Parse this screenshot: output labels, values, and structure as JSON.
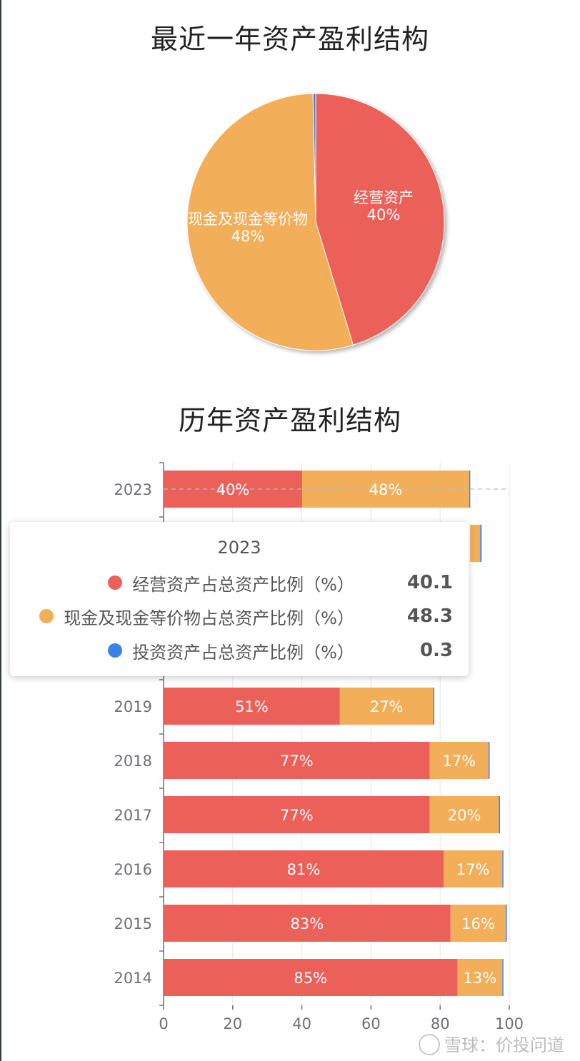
{
  "pie": {
    "title": "最近一年资产盈利结构",
    "chart_data": {
      "type": "pie",
      "slices": [
        {
          "label": "经营资产",
          "value": 40,
          "color": "#ec605a"
        },
        {
          "label": "现金及现金等价物",
          "value": 48,
          "color": "#f2ae58"
        },
        {
          "label": "投资资产",
          "value": 0.3,
          "color": "#3b82e8"
        }
      ],
      "display_labels": {
        "operating": "40%",
        "cash": "48%"
      }
    }
  },
  "bar": {
    "title": "历年资产盈利结构",
    "chart_data": {
      "type": "bar",
      "orientation": "horizontal",
      "stacked": true,
      "categories": [
        "2023",
        "2019",
        "2018",
        "2017",
        "2016",
        "2015",
        "2014"
      ],
      "series": [
        {
          "name": "经营资产占总资产比例（%）",
          "color": "#ec605a",
          "values": [
            40.1,
            51,
            77,
            77,
            81,
            83,
            85
          ],
          "labels": [
            "40%",
            "51%",
            "77%",
            "77%",
            "81%",
            "83%",
            "85%"
          ]
        },
        {
          "name": "现金及现金等价物占总资产比例（%）",
          "color": "#f2ae58",
          "values": [
            48.3,
            27,
            17,
            20,
            17,
            16,
            13
          ],
          "labels": [
            "48%",
            "27%",
            "17%",
            "20%",
            "17%",
            "16%",
            "13%"
          ]
        },
        {
          "name": "投资资产占总资产比例（%）",
          "color": "#3b82e8",
          "values": [
            0.3,
            0.3,
            0.3,
            0.3,
            0.3,
            0.3,
            0.3
          ]
        }
      ],
      "xlim": [
        0,
        100
      ],
      "xticks": [
        "0",
        "20",
        "40",
        "60",
        "80",
        "100"
      ],
      "partially_hidden_bar_total": 92,
      "grid": true
    }
  },
  "tooltip": {
    "year": "2023",
    "rows": [
      {
        "label": "经营资产占总资产比例（%）",
        "value": "40.1",
        "color": "#ec605a"
      },
      {
        "label": "现金及现金等价物占总资产比例（%）",
        "value": "48.3",
        "color": "#f2ae58"
      },
      {
        "label": "投资资产占总资产比例（%）",
        "value": "0.3",
        "color": "#3b82e8"
      }
    ]
  },
  "watermark": "雪球：价投问道"
}
